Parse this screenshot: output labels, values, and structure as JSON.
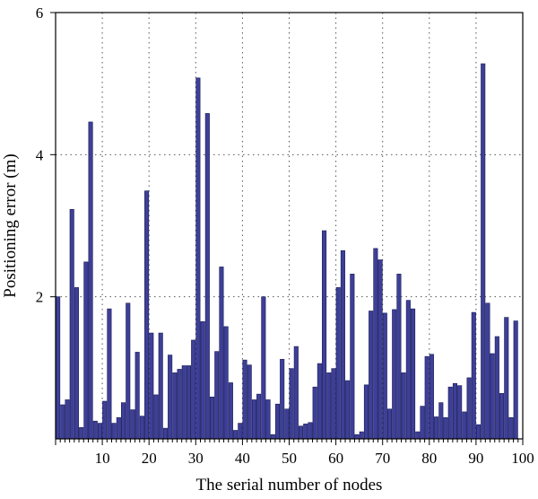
{
  "chart_data": {
    "type": "bar",
    "xlabel": "The serial number of nodes",
    "ylabel": "Positioning error (m)",
    "xlim": [
      0,
      100
    ],
    "ylim": [
      0,
      6
    ],
    "xticks": [
      10,
      20,
      30,
      40,
      50,
      60,
      70,
      80,
      90,
      100
    ],
    "yticks": [
      2,
      4,
      6
    ],
    "grid": true,
    "colors": {
      "bar_fill": "#3d3f98",
      "bar_stroke": "#1a1c55",
      "axis": "#000000",
      "grid": "#555555"
    },
    "series": [
      {
        "x": [
          1,
          2,
          3,
          4,
          5,
          6,
          7,
          8,
          9,
          10,
          11,
          12,
          13,
          14,
          15,
          16,
          17,
          18,
          19,
          20,
          21,
          22,
          23,
          24,
          25,
          26,
          27,
          28,
          29,
          30,
          31,
          32,
          33,
          34,
          35,
          36,
          37,
          38,
          39,
          40,
          41,
          42,
          43,
          44,
          45,
          46,
          47,
          48,
          49,
          50,
          51,
          52,
          53,
          54,
          55,
          56,
          57,
          58,
          59,
          60,
          61,
          62,
          63,
          64,
          65,
          66,
          67,
          68,
          69,
          70,
          71,
          72,
          73,
          74,
          75,
          76,
          77,
          78,
          79,
          80,
          81,
          82,
          83,
          84,
          85,
          86,
          87,
          88,
          89,
          90,
          91,
          92,
          93,
          94,
          95,
          96,
          97,
          98,
          99,
          100
        ],
        "values": [
          2.0,
          0.48,
          0.55,
          3.23,
          2.13,
          0.16,
          2.49,
          4.46,
          0.25,
          0.22,
          0.53,
          1.83,
          0.22,
          0.3,
          0.51,
          1.91,
          0.41,
          1.22,
          0.32,
          3.49,
          1.49,
          0.62,
          1.49,
          0.15,
          1.18,
          0.93,
          0.98,
          1.03,
          1.03,
          1.39,
          5.08,
          1.65,
          4.58,
          0.59,
          1.23,
          2.42,
          1.58,
          0.79,
          0.12,
          0.22,
          1.11,
          1.04,
          0.55,
          0.63,
          2.0,
          0.55,
          0.06,
          0.49,
          1.12,
          0.42,
          0.99,
          1.3,
          0.18,
          0.21,
          0.23,
          0.73,
          1.06,
          2.93,
          0.93,
          0.99,
          2.13,
          2.65,
          0.82,
          2.32,
          0.06,
          0.1,
          0.76,
          1.8,
          2.68,
          2.52,
          1.77,
          0.42,
          1.82,
          2.32,
          0.93,
          1.95,
          1.83,
          0.1,
          0.46,
          1.16,
          1.19,
          0.31,
          0.51,
          0.3,
          0.73,
          0.78,
          0.75,
          0.38,
          0.86,
          1.78,
          0.2,
          5.28,
          1.91,
          1.2,
          1.44,
          0.64,
          1.71,
          0.3,
          1.66,
          0.0
        ]
      }
    ]
  }
}
